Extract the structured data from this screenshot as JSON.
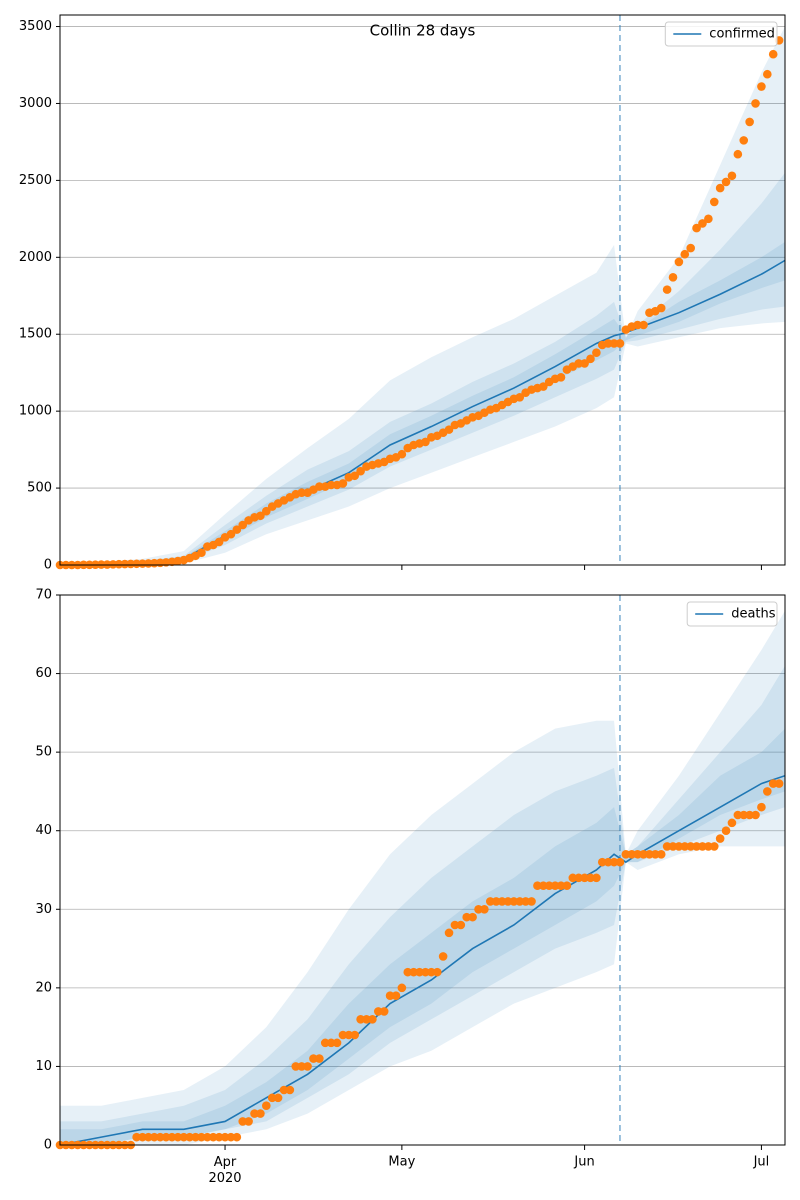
{
  "chart_data": [
    {
      "type": "line",
      "title": "Collin 28 days",
      "x": [
        0,
        7,
        14,
        21,
        28,
        35,
        42,
        49,
        56,
        63,
        70,
        77,
        84,
        91,
        94,
        96,
        98,
        105,
        112,
        119,
        123
      ],
      "series": [
        {
          "name": "confirmed",
          "color": "#1f77b4",
          "values": [
            0,
            2,
            10,
            40,
            190,
            350,
            480,
            600,
            780,
            900,
            1030,
            1150,
            1290,
            1440,
            1490,
            1510,
            1540,
            1640,
            1760,
            1890,
            1980
          ]
        }
      ],
      "bands": [
        {
          "lower": [
            0,
            0,
            0,
            10,
            80,
            200,
            290,
            380,
            500,
            600,
            700,
            800,
            900,
            1020,
            1090,
            1440,
            1420,
            1480,
            1540,
            1570,
            1580
          ],
          "upper": [
            10,
            20,
            40,
            90,
            330,
            560,
            760,
            950,
            1200,
            1350,
            1480,
            1600,
            1750,
            1900,
            2080,
            1470,
            1650,
            2000,
            2600,
            3200,
            3500
          ]
        },
        {
          "lower": [
            0,
            1,
            5,
            25,
            130,
            270,
            380,
            490,
            640,
            750,
            860,
            970,
            1090,
            1210,
            1270,
            1450,
            1460,
            1530,
            1600,
            1660,
            1680
          ],
          "upper": [
            5,
            10,
            25,
            60,
            260,
            450,
            620,
            740,
            930,
            1050,
            1190,
            1310,
            1450,
            1620,
            1710,
            1480,
            1560,
            1780,
            2050,
            2350,
            2550
          ]
        },
        {
          "lower": [
            0,
            1,
            7,
            32,
            160,
            310,
            430,
            550,
            710,
            830,
            960,
            1080,
            1200,
            1330,
            1390,
            1460,
            1490,
            1580,
            1700,
            1800,
            1850
          ],
          "upper": [
            3,
            5,
            15,
            50,
            220,
            400,
            540,
            660,
            850,
            970,
            1100,
            1220,
            1370,
            1530,
            1600,
            1490,
            1540,
            1710,
            1850,
            2000,
            2100
          ]
        }
      ],
      "band_color": "#1f77b4",
      "observed": {
        "color": "#ff7f0e",
        "x": [
          0,
          1,
          2,
          3,
          4,
          5,
          6,
          7,
          8,
          9,
          10,
          11,
          12,
          13,
          14,
          15,
          16,
          17,
          18,
          19,
          20,
          21,
          22,
          23,
          24,
          25,
          26,
          27,
          28,
          29,
          30,
          31,
          32,
          33,
          34,
          35,
          36,
          37,
          38,
          39,
          40,
          41,
          42,
          43,
          44,
          45,
          46,
          47,
          48,
          49,
          50,
          51,
          52,
          53,
          54,
          55,
          56,
          57,
          58,
          59,
          60,
          61,
          62,
          63,
          64,
          65,
          66,
          67,
          68,
          69,
          70,
          71,
          72,
          73,
          74,
          75,
          76,
          77,
          78,
          79,
          80,
          81,
          82,
          83,
          84,
          85,
          86,
          87,
          88,
          89,
          90,
          91,
          92,
          93,
          94,
          95,
          96,
          97,
          98,
          99,
          100,
          101,
          102,
          103,
          104,
          105,
          106,
          107,
          108,
          109,
          110,
          111,
          112,
          113,
          114,
          115,
          116,
          117,
          118,
          119,
          120,
          121,
          122
        ],
        "values": [
          0,
          0,
          0,
          0,
          1,
          1,
          2,
          3,
          3,
          4,
          5,
          6,
          7,
          8,
          9,
          10,
          12,
          14,
          17,
          21,
          26,
          32,
          45,
          60,
          80,
          120,
          130,
          150,
          180,
          200,
          230,
          260,
          290,
          310,
          320,
          350,
          380,
          400,
          420,
          440,
          460,
          470,
          470,
          490,
          510,
          510,
          520,
          520,
          530,
          570,
          580,
          610,
          640,
          650,
          660,
          670,
          690,
          700,
          720,
          760,
          780,
          790,
          800,
          830,
          840,
          860,
          880,
          910,
          920,
          940,
          960,
          970,
          990,
          1010,
          1020,
          1040,
          1060,
          1080,
          1090,
          1120,
          1140,
          1150,
          1160,
          1190,
          1210,
          1220,
          1270,
          1290,
          1310,
          1310,
          1340,
          1380,
          1430,
          1440,
          1440,
          1440,
          1530,
          1550,
          1560,
          1560,
          1640,
          1650,
          1670,
          1790,
          1870,
          1970,
          2020,
          2060,
          2190,
          2220,
          2250,
          2360,
          2450,
          2490,
          2530,
          2670,
          2760,
          2880,
          3000,
          3110,
          3190,
          3320,
          3410
        ]
      },
      "vline": 95,
      "vline_color": "#1f77b4",
      "xlim": [
        0,
        123
      ],
      "xticks": [
        {
          "value": 28,
          "label": "Apr\n2020"
        },
        {
          "value": 58,
          "label": "May"
        },
        {
          "value": 89,
          "label": "Jun"
        },
        {
          "value": 119,
          "label": "Jul"
        }
      ],
      "show_xtick_labels": false,
      "ylim": [
        0,
        3575
      ],
      "yticks": [
        0,
        500,
        1000,
        1500,
        2000,
        2500,
        3000,
        3500
      ],
      "grid": true,
      "legend": "upper right"
    },
    {
      "type": "line",
      "x": [
        0,
        7,
        14,
        21,
        28,
        35,
        42,
        49,
        56,
        63,
        70,
        77,
        84,
        91,
        94,
        96,
        98,
        105,
        112,
        119,
        123
      ],
      "series": [
        {
          "name": "deaths",
          "color": "#1f77b4",
          "values": [
            0,
            1,
            2,
            2,
            3,
            6,
            9,
            13,
            18,
            21,
            25,
            28,
            32,
            35,
            37,
            36,
            37,
            40,
            43,
            46,
            47
          ]
        }
      ],
      "bands": [
        {
          "lower": [
            0,
            0,
            0,
            0,
            1,
            2,
            4,
            7,
            10,
            12,
            15,
            18,
            20,
            22,
            23,
            36,
            35,
            37,
            38,
            38,
            38
          ],
          "upper": [
            5,
            5,
            6,
            7,
            10,
            15,
            22,
            30,
            37,
            42,
            46,
            50,
            53,
            54,
            54,
            37,
            40,
            47,
            55,
            63,
            68
          ]
        },
        {
          "lower": [
            0,
            0,
            1,
            1,
            2,
            3,
            6,
            9,
            13,
            16,
            19,
            22,
            25,
            27,
            28,
            36,
            36,
            38,
            40,
            42,
            43
          ],
          "upper": [
            3,
            3,
            4,
            5,
            7,
            11,
            16,
            23,
            29,
            34,
            38,
            42,
            45,
            47,
            48,
            37,
            38,
            44,
            50,
            56,
            61
          ]
        },
        {
          "lower": [
            0,
            0,
            1,
            1,
            2,
            4,
            7,
            11,
            15,
            18,
            22,
            25,
            28,
            31,
            33,
            36,
            36,
            39,
            42,
            44,
            45
          ],
          "upper": [
            2,
            2,
            3,
            3,
            5,
            8,
            12,
            18,
            23,
            27,
            31,
            34,
            38,
            41,
            43,
            37,
            38,
            42,
            47,
            50,
            53
          ]
        }
      ],
      "band_color": "#1f77b4",
      "observed": {
        "color": "#ff7f0e",
        "x": [
          0,
          1,
          2,
          3,
          4,
          5,
          6,
          7,
          8,
          9,
          10,
          11,
          12,
          13,
          14,
          15,
          16,
          17,
          18,
          19,
          20,
          21,
          22,
          23,
          24,
          25,
          26,
          27,
          28,
          29,
          30,
          31,
          32,
          33,
          34,
          35,
          36,
          37,
          38,
          39,
          40,
          41,
          42,
          43,
          44,
          45,
          46,
          47,
          48,
          49,
          50,
          51,
          52,
          53,
          54,
          55,
          56,
          57,
          58,
          59,
          60,
          61,
          62,
          63,
          64,
          65,
          66,
          67,
          68,
          69,
          70,
          71,
          72,
          73,
          74,
          75,
          76,
          77,
          78,
          79,
          80,
          81,
          82,
          83,
          84,
          85,
          86,
          87,
          88,
          89,
          90,
          91,
          92,
          93,
          94,
          95,
          96,
          97,
          98,
          99,
          100,
          101,
          102,
          103,
          104,
          105,
          106,
          107,
          108,
          109,
          110,
          111,
          112,
          113,
          114,
          115,
          116,
          117,
          118,
          119,
          120,
          121,
          122
        ],
        "values": [
          0,
          0,
          0,
          0,
          0,
          0,
          0,
          0,
          0,
          0,
          0,
          0,
          0,
          1,
          1,
          1,
          1,
          1,
          1,
          1,
          1,
          1,
          1,
          1,
          1,
          1,
          1,
          1,
          1,
          1,
          1,
          3,
          3,
          4,
          4,
          5,
          6,
          6,
          7,
          7,
          10,
          10,
          10,
          11,
          11,
          13,
          13,
          13,
          14,
          14,
          14,
          16,
          16,
          16,
          17,
          17,
          19,
          19,
          20,
          22,
          22,
          22,
          22,
          22,
          22,
          24,
          27,
          28,
          28,
          29,
          29,
          30,
          30,
          31,
          31,
          31,
          31,
          31,
          31,
          31,
          31,
          33,
          33,
          33,
          33,
          33,
          33,
          34,
          34,
          34,
          34,
          34,
          36,
          36,
          36,
          36,
          37,
          37,
          37,
          37,
          37,
          37,
          37,
          38,
          38,
          38,
          38,
          38,
          38,
          38,
          38,
          38,
          39,
          40,
          41,
          42,
          42,
          42,
          42,
          43,
          45,
          46,
          46
        ]
      },
      "vline": 95,
      "vline_color": "#1f77b4",
      "xlim": [
        0,
        123
      ],
      "xticks": [
        {
          "value": 28,
          "label": "Apr\n2020"
        },
        {
          "value": 58,
          "label": "May"
        },
        {
          "value": 89,
          "label": "Jun"
        },
        {
          "value": 119,
          "label": "Jul"
        }
      ],
      "show_xtick_labels": true,
      "ylim": [
        0,
        70
      ],
      "yticks": [
        0,
        10,
        20,
        30,
        40,
        50,
        60,
        70
      ],
      "grid": true,
      "legend": "upper right"
    }
  ]
}
